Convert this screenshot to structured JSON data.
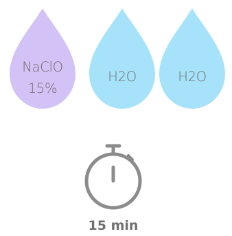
{
  "colors": {
    "naclo_drop": "#d3c2f6",
    "water_drop": "#a6e3fa",
    "drop_text": "#6c6c6c",
    "stopwatch": "#8c8c8c",
    "time_text": "#6f6f6f"
  },
  "drops": [
    {
      "id": "naclo",
      "lines": [
        "NaClO",
        "15%"
      ],
      "color_key": "naclo_drop"
    },
    {
      "id": "water-1",
      "lines": [
        "H2O"
      ],
      "color_key": "water_drop"
    },
    {
      "id": "water-2",
      "lines": [
        "H2O"
      ],
      "color_key": "water_drop"
    }
  ],
  "timer": {
    "icon": "stopwatch-icon",
    "label": "15 min"
  }
}
